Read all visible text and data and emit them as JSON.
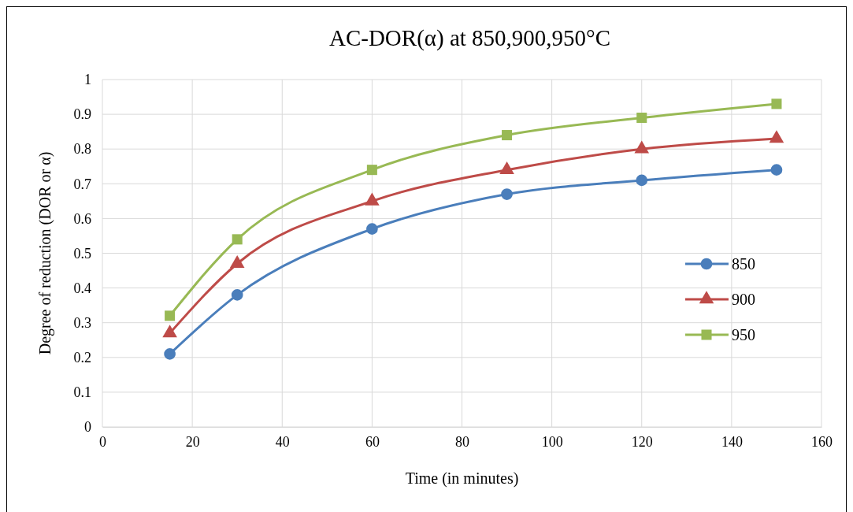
{
  "chart_data": {
    "type": "line",
    "title": "AC-DOR(α) at 850,900,950°C",
    "xlabel": "Time (in minutes)",
    "ylabel": "Degree of reduction (DOR or α)",
    "x": [
      15,
      30,
      60,
      90,
      120,
      150
    ],
    "series": [
      {
        "name": "850",
        "color": "#4a7ebb",
        "marker": "circle",
        "values": [
          0.21,
          0.38,
          0.57,
          0.67,
          0.71,
          0.74
        ]
      },
      {
        "name": "900",
        "color": "#be4b48",
        "marker": "triangle",
        "values": [
          0.27,
          0.47,
          0.65,
          0.74,
          0.8,
          0.83
        ]
      },
      {
        "name": "950",
        "color": "#98b954",
        "marker": "square",
        "values": [
          0.32,
          0.54,
          0.74,
          0.84,
          0.89,
          0.93
        ]
      }
    ],
    "xlim": [
      0,
      160
    ],
    "xticks": [
      0,
      20,
      40,
      60,
      80,
      100,
      120,
      140,
      160
    ],
    "ylim": [
      0,
      1
    ],
    "yticks": [
      0,
      0.1,
      0.2,
      0.3,
      0.4,
      0.5,
      0.6,
      0.7,
      0.8,
      0.9,
      1
    ],
    "grid": true,
    "legend": "right",
    "line_style": "solid"
  }
}
